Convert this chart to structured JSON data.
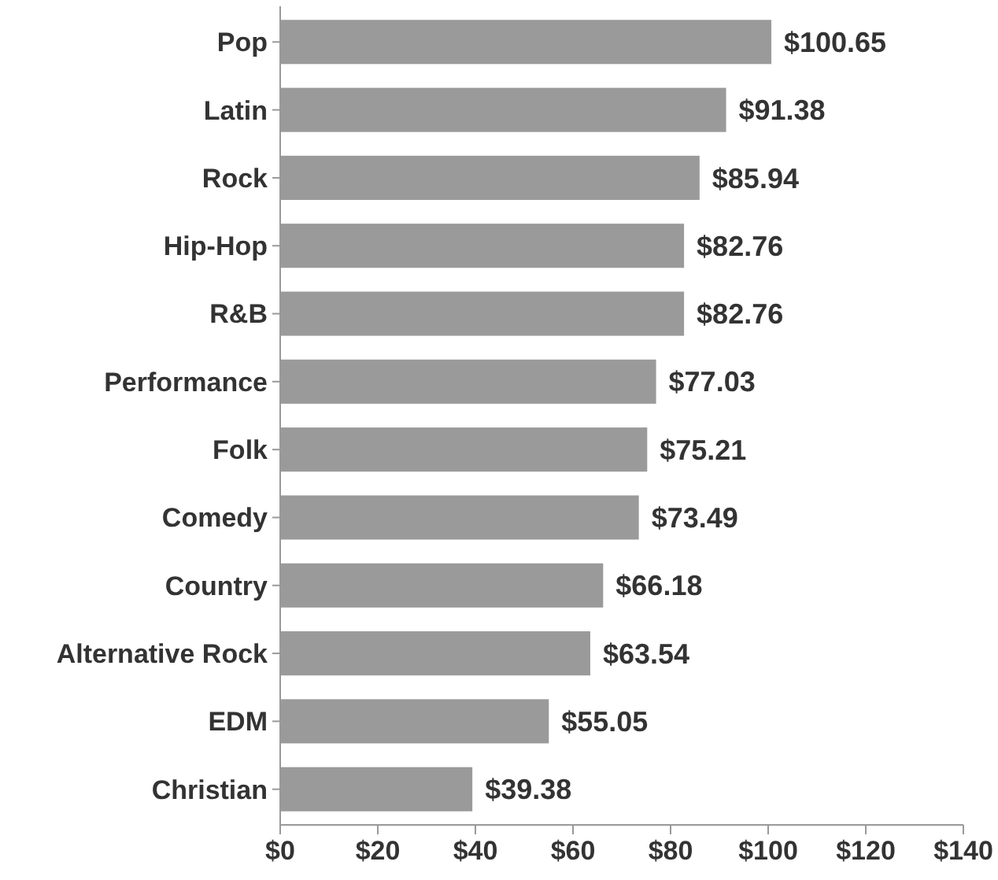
{
  "chart_data": {
    "type": "bar",
    "orientation": "horizontal",
    "categories": [
      "Pop",
      "Latin",
      "Rock",
      "Hip-Hop",
      "R&B",
      "Performance",
      "Folk",
      "Comedy",
      "Country",
      "Alternative Rock",
      "EDM",
      "Christian"
    ],
    "values": [
      100.65,
      91.38,
      85.94,
      82.76,
      82.76,
      77.03,
      75.21,
      73.49,
      66.18,
      63.54,
      55.05,
      39.38
    ],
    "value_labels": [
      "$100.65",
      "$91.38",
      "$85.94",
      "$82.76",
      "$82.76",
      "$77.03",
      "$75.21",
      "$73.49",
      "$66.18",
      "$63.54",
      "$55.05",
      "$39.38"
    ],
    "color": "#9a9a9a",
    "xlim": [
      0,
      140
    ],
    "xticks": [
      {
        "value": 0,
        "label": "$0"
      },
      {
        "value": 20,
        "label": "$20"
      },
      {
        "value": 40,
        "label": "$40"
      },
      {
        "value": 60,
        "label": "$60"
      },
      {
        "value": 80,
        "label": "$80"
      },
      {
        "value": 100,
        "label": "$100"
      },
      {
        "value": 120,
        "label": "$120"
      },
      {
        "value": 140,
        "label": "$140"
      }
    ],
    "grid": false
  }
}
